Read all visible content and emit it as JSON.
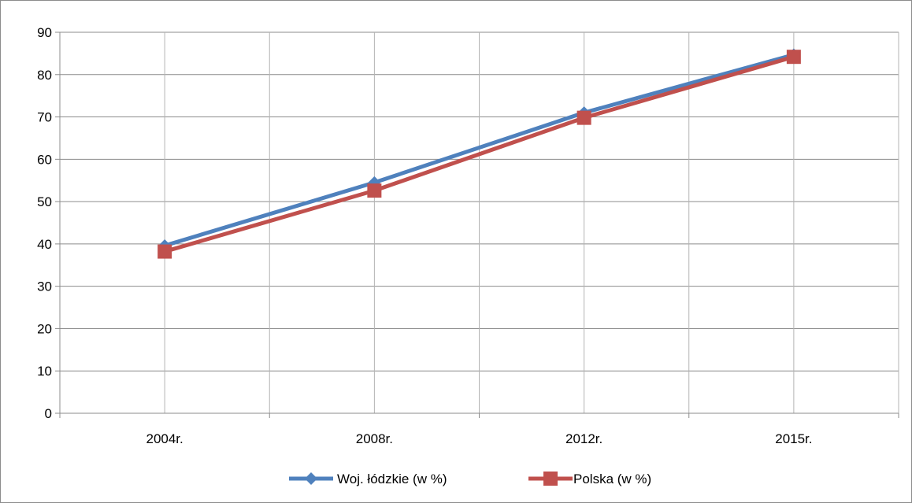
{
  "chart_data": {
    "type": "line",
    "title": "",
    "xlabel": "",
    "ylabel": "",
    "categories": [
      "2004r.",
      "2008r.",
      "2012r.",
      "2015r."
    ],
    "ylim": [
      0,
      90
    ],
    "yticks": [
      0,
      10,
      20,
      30,
      40,
      50,
      60,
      70,
      80,
      90
    ],
    "grid": true,
    "legend_position": "bottom",
    "series": [
      {
        "name": "Woj. łódzkie (w %)",
        "values": [
          39.6,
          54.5,
          71.0,
          84.7
        ],
        "color": "#4f81bd",
        "marker": "diamond"
      },
      {
        "name": "Polska (w %)",
        "values": [
          38.2,
          52.6,
          69.8,
          84.2
        ],
        "color": "#c0504d",
        "marker": "square"
      }
    ]
  }
}
